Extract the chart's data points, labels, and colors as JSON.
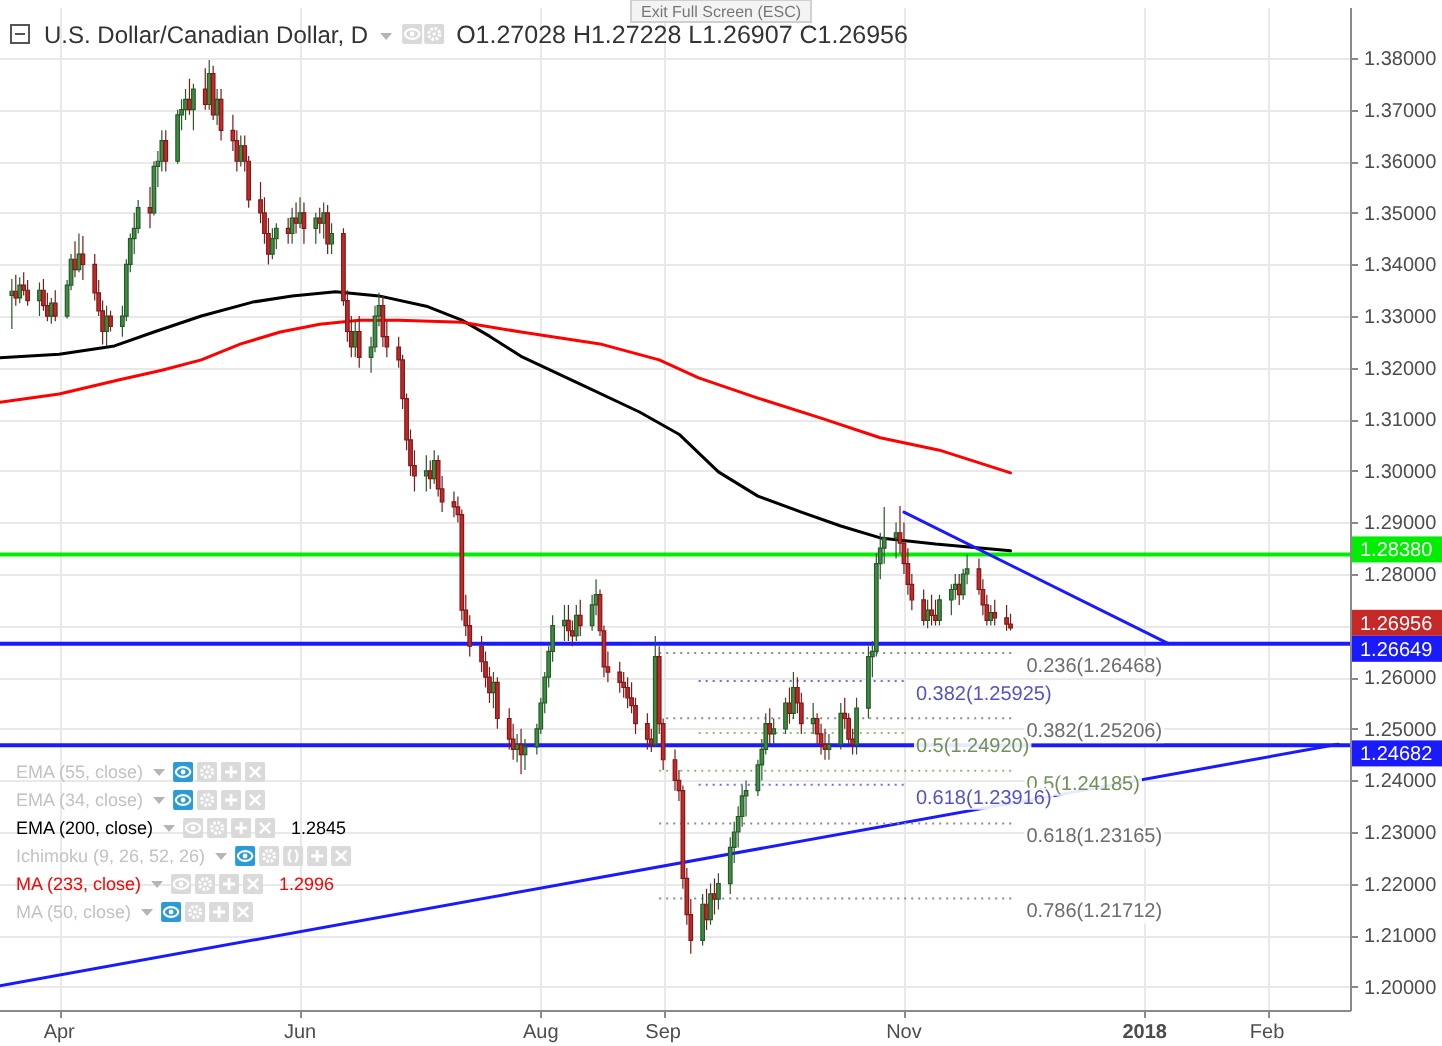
{
  "chart_data": {
    "type": "candlestick",
    "title": "U.S. Dollar/Canadian Dollar, D",
    "subtitle": "O1.27028 H1.27228 L1.26907 C1.26956",
    "xlim": [
      "2017-03-17",
      "2018-02-22"
    ],
    "xticks": [
      {
        "value": "2017-04-01",
        "label": "Apr"
      },
      {
        "value": "2017-06-01",
        "label": "Jun"
      },
      {
        "value": "2017-08-01",
        "label": "Aug"
      },
      {
        "value": "2017-09-01",
        "label": "Sep"
      },
      {
        "value": "2017-11-01",
        "label": "Nov"
      },
      {
        "value": "2018-01-01",
        "label": "2018"
      },
      {
        "value": "2018-02-01",
        "label": "Feb"
      }
    ],
    "ylim": [
      1.1955,
      1.3897
    ],
    "yticks": [
      {
        "value": 1.2,
        "label": "1.20000"
      },
      {
        "value": 1.21,
        "label": "1.21000"
      },
      {
        "value": 1.22,
        "label": "1.22000"
      },
      {
        "value": 1.23,
        "label": "1.23000"
      },
      {
        "value": 1.24,
        "label": "1.24000"
      },
      {
        "value": 1.25,
        "label": "1.25000"
      },
      {
        "value": 1.26,
        "label": "1.26000"
      },
      {
        "value": 1.27,
        "label": null
      },
      {
        "value": 1.28,
        "label": "1.28000"
      },
      {
        "value": 1.29,
        "label": "1.29000"
      },
      {
        "value": 1.3,
        "label": "1.30000"
      },
      {
        "value": 1.31,
        "label": "1.31000"
      },
      {
        "value": 1.32,
        "label": "1.32000"
      },
      {
        "value": 1.33,
        "label": "1.33000"
      },
      {
        "value": 1.34,
        "label": "1.34000"
      },
      {
        "value": 1.35,
        "label": "1.35000"
      },
      {
        "value": 1.36,
        "label": "1.36000"
      },
      {
        "value": 1.37,
        "label": "1.37000"
      },
      {
        "value": 1.38,
        "label": "1.38000"
      }
    ],
    "grid": true,
    "legend": "bottom left",
    "x": [
      "2017-03-20",
      "2017-03-21",
      "2017-03-22",
      "2017-03-23",
      "2017-03-24",
      "2017-03-27",
      "2017-03-28",
      "2017-03-29",
      "2017-03-30",
      "2017-03-31",
      "2017-04-03",
      "2017-04-04",
      "2017-04-05",
      "2017-04-06",
      "2017-04-07",
      "2017-04-10",
      "2017-04-11",
      "2017-04-12",
      "2017-04-13",
      "2017-04-14",
      "2017-04-17",
      "2017-04-18",
      "2017-04-19",
      "2017-04-20",
      "2017-04-21",
      "2017-04-24",
      "2017-04-25",
      "2017-04-26",
      "2017-04-27",
      "2017-04-28",
      "2017-05-01",
      "2017-05-02",
      "2017-05-03",
      "2017-05-04",
      "2017-05-05",
      "2017-05-08",
      "2017-05-09",
      "2017-05-10",
      "2017-05-11",
      "2017-05-12",
      "2017-05-15",
      "2017-05-16",
      "2017-05-17",
      "2017-05-18",
      "2017-05-19",
      "2017-05-22",
      "2017-05-23",
      "2017-05-24",
      "2017-05-25",
      "2017-05-26",
      "2017-05-29",
      "2017-05-30",
      "2017-05-31",
      "2017-06-01",
      "2017-06-02",
      "2017-06-05",
      "2017-06-06",
      "2017-06-07",
      "2017-06-08",
      "2017-06-09",
      "2017-06-12",
      "2017-06-13",
      "2017-06-14",
      "2017-06-15",
      "2017-06-16",
      "2017-06-19",
      "2017-06-20",
      "2017-06-21",
      "2017-06-22",
      "2017-06-23",
      "2017-06-26",
      "2017-06-27",
      "2017-06-28",
      "2017-06-29",
      "2017-06-30",
      "2017-07-03",
      "2017-07-04",
      "2017-07-05",
      "2017-07-06",
      "2017-07-07",
      "2017-07-10",
      "2017-07-11",
      "2017-07-12",
      "2017-07-13",
      "2017-07-14",
      "2017-07-17",
      "2017-07-18",
      "2017-07-19",
      "2017-07-20",
      "2017-07-21",
      "2017-07-24",
      "2017-07-25",
      "2017-07-26",
      "2017-07-27",
      "2017-07-28",
      "2017-07-31",
      "2017-08-01",
      "2017-08-02",
      "2017-08-03",
      "2017-08-04",
      "2017-08-07",
      "2017-08-08",
      "2017-08-09",
      "2017-08-10",
      "2017-08-11",
      "2017-08-14",
      "2017-08-15",
      "2017-08-16",
      "2017-08-17",
      "2017-08-18",
      "2017-08-21",
      "2017-08-22",
      "2017-08-23",
      "2017-08-24",
      "2017-08-25",
      "2017-08-28",
      "2017-08-29",
      "2017-08-30",
      "2017-08-31",
      "2017-09-01",
      "2017-09-04",
      "2017-09-05",
      "2017-09-06",
      "2017-09-07",
      "2017-09-08",
      "2017-09-11",
      "2017-09-12",
      "2017-09-13",
      "2017-09-14",
      "2017-09-15",
      "2017-09-18",
      "2017-09-19",
      "2017-09-20",
      "2017-09-21",
      "2017-09-22",
      "2017-09-25",
      "2017-09-26",
      "2017-09-27",
      "2017-09-28",
      "2017-09-29",
      "2017-10-02",
      "2017-10-03",
      "2017-10-04",
      "2017-10-05",
      "2017-10-06",
      "2017-10-09",
      "2017-10-10",
      "2017-10-11",
      "2017-10-12",
      "2017-10-13",
      "2017-10-16",
      "2017-10-17",
      "2017-10-18",
      "2017-10-19",
      "2017-10-20",
      "2017-10-23",
      "2017-10-24",
      "2017-10-25",
      "2017-10-26",
      "2017-10-27",
      "2017-10-30",
      "2017-10-31",
      "2017-11-01",
      "2017-11-02",
      "2017-11-03",
      "2017-11-06",
      "2017-11-07",
      "2017-11-08",
      "2017-11-09",
      "2017-11-10",
      "2017-11-13",
      "2017-11-14",
      "2017-11-15",
      "2017-11-16",
      "2017-11-17",
      "2017-11-20",
      "2017-11-21",
      "2017-11-22",
      "2017-11-23",
      "2017-11-24",
      "2017-11-27",
      "2017-11-28"
    ],
    "ohlc": [
      [
        1.334,
        1.3372,
        1.3275,
        1.3348
      ],
      [
        1.3348,
        1.338,
        1.332,
        1.3335
      ],
      [
        1.3335,
        1.3375,
        1.3325,
        1.336
      ],
      [
        1.336,
        1.3385,
        1.334,
        1.335
      ],
      [
        1.335,
        1.337,
        1.332,
        1.333
      ],
      [
        1.333,
        1.3365,
        1.33,
        1.335
      ],
      [
        1.335,
        1.3372,
        1.331,
        1.332
      ],
      [
        1.332,
        1.3345,
        1.329,
        1.33
      ],
      [
        1.33,
        1.3335,
        1.3285,
        1.3325
      ],
      [
        1.3325,
        1.335,
        1.329,
        1.33
      ],
      [
        1.33,
        1.337,
        1.3295,
        1.336
      ],
      [
        1.336,
        1.342,
        1.335,
        1.341
      ],
      [
        1.341,
        1.3445,
        1.3375,
        1.339
      ],
      [
        1.339,
        1.346,
        1.3385,
        1.342
      ],
      [
        1.342,
        1.3455,
        1.337,
        1.34
      ],
      [
        1.34,
        1.342,
        1.333,
        1.3345
      ],
      [
        1.3345,
        1.337,
        1.33,
        1.331
      ],
      [
        1.331,
        1.333,
        1.3245,
        1.327
      ],
      [
        1.327,
        1.332,
        1.3242,
        1.33
      ],
      [
        1.33,
        1.331,
        1.327,
        1.328
      ],
      [
        1.328,
        1.332,
        1.326,
        1.33
      ],
      [
        1.33,
        1.341,
        1.329,
        1.34
      ],
      [
        1.34,
        1.346,
        1.3385,
        1.345
      ],
      [
        1.345,
        1.35,
        1.342,
        1.347
      ],
      [
        1.347,
        1.3525,
        1.346,
        1.351
      ],
      [
        1.351,
        1.355,
        1.347,
        1.35
      ],
      [
        1.35,
        1.36,
        1.3495,
        1.359
      ],
      [
        1.359,
        1.362,
        1.355,
        1.36
      ],
      [
        1.36,
        1.366,
        1.358,
        1.364
      ],
      [
        1.364,
        1.366,
        1.358,
        1.36
      ],
      [
        1.36,
        1.37,
        1.3595,
        1.369
      ],
      [
        1.369,
        1.372,
        1.366,
        1.37
      ],
      [
        1.37,
        1.374,
        1.368,
        1.372
      ],
      [
        1.372,
        1.376,
        1.369,
        1.37
      ],
      [
        1.37,
        1.375,
        1.366,
        1.374
      ],
      [
        1.374,
        1.378,
        1.37,
        1.371
      ],
      [
        1.371,
        1.3796,
        1.37,
        1.377
      ],
      [
        1.377,
        1.3785,
        1.368,
        1.369
      ],
      [
        1.369,
        1.374,
        1.367,
        1.372
      ],
      [
        1.372,
        1.374,
        1.364,
        1.366
      ],
      [
        1.366,
        1.369,
        1.362,
        1.364
      ],
      [
        1.364,
        1.366,
        1.358,
        1.36
      ],
      [
        1.36,
        1.365,
        1.359,
        1.363
      ],
      [
        1.363,
        1.365,
        1.358,
        1.36
      ],
      [
        1.36,
        1.361,
        1.351,
        1.3525
      ],
      [
        1.3525,
        1.356,
        1.348,
        1.35
      ],
      [
        1.35,
        1.353,
        1.344,
        1.346
      ],
      [
        1.346,
        1.349,
        1.34,
        1.342
      ],
      [
        1.342,
        1.347,
        1.341,
        1.345
      ],
      [
        1.345,
        1.348,
        1.343,
        1.347
      ],
      [
        1.347,
        1.349,
        1.344,
        1.346
      ],
      [
        1.346,
        1.351,
        1.344,
        1.349
      ],
      [
        1.349,
        1.352,
        1.346,
        1.348
      ],
      [
        1.348,
        1.353,
        1.347,
        1.35
      ],
      [
        1.35,
        1.352,
        1.344,
        1.347
      ],
      [
        1.347,
        1.35,
        1.344,
        1.349
      ],
      [
        1.349,
        1.351,
        1.346,
        1.348
      ],
      [
        1.348,
        1.352,
        1.345,
        1.35
      ],
      [
        1.35,
        1.3515,
        1.342,
        1.344
      ],
      [
        1.344,
        1.348,
        1.342,
        1.346
      ],
      [
        1.346,
        1.347,
        1.332,
        1.333
      ],
      [
        1.333,
        1.335,
        1.325,
        1.327
      ],
      [
        1.327,
        1.33,
        1.322,
        1.324
      ],
      [
        1.324,
        1.329,
        1.322,
        1.327
      ],
      [
        1.327,
        1.33,
        1.32,
        1.322
      ],
      [
        1.322,
        1.326,
        1.319,
        1.324
      ],
      [
        1.324,
        1.332,
        1.323,
        1.33
      ],
      [
        1.33,
        1.3345,
        1.328,
        1.332
      ],
      [
        1.332,
        1.334,
        1.324,
        1.326
      ],
      [
        1.326,
        1.329,
        1.322,
        1.324
      ],
      [
        1.324,
        1.326,
        1.32,
        1.3215
      ],
      [
        1.3215,
        1.3225,
        1.312,
        1.314
      ],
      [
        1.314,
        1.315,
        1.304,
        1.306
      ],
      [
        1.306,
        1.308,
        1.299,
        1.301
      ],
      [
        1.301,
        1.304,
        1.296,
        1.299
      ],
      [
        1.299,
        1.303,
        1.296,
        1.3
      ],
      [
        1.3,
        1.302,
        1.2965,
        1.2985
      ],
      [
        1.2985,
        1.304,
        1.2975,
        1.302
      ],
      [
        1.302,
        1.303,
        1.295,
        1.2965
      ],
      [
        1.2965,
        1.299,
        1.292,
        1.294
      ],
      [
        1.294,
        1.296,
        1.291,
        1.293
      ],
      [
        1.293,
        1.295,
        1.29,
        1.2915
      ],
      [
        1.2915,
        1.2925,
        1.271,
        1.273
      ],
      [
        1.273,
        1.276,
        1.268,
        1.27
      ],
      [
        1.27,
        1.272,
        1.264,
        1.266
      ],
      [
        1.266,
        1.268,
        1.261,
        1.263
      ],
      [
        1.263,
        1.265,
        1.258,
        1.26
      ],
      [
        1.26,
        1.262,
        1.255,
        1.257
      ],
      [
        1.257,
        1.261,
        1.254,
        1.259
      ],
      [
        1.259,
        1.26,
        1.25,
        1.252
      ],
      [
        1.252,
        1.254,
        1.246,
        1.248
      ],
      [
        1.248,
        1.251,
        1.244,
        1.246
      ],
      [
        1.246,
        1.249,
        1.2435,
        1.247
      ],
      [
        1.247,
        1.25,
        1.2412,
        1.245
      ],
      [
        1.245,
        1.248,
        1.242,
        1.2465
      ],
      [
        1.2465,
        1.251,
        1.245,
        1.25
      ],
      [
        1.25,
        1.256,
        1.249,
        1.255
      ],
      [
        1.255,
        1.261,
        1.253,
        1.26
      ],
      [
        1.26,
        1.266,
        1.258,
        1.265
      ],
      [
        1.265,
        1.272,
        1.263,
        1.27
      ],
      [
        1.27,
        1.274,
        1.267,
        1.271
      ],
      [
        1.271,
        1.274,
        1.267,
        1.269
      ],
      [
        1.269,
        1.271,
        1.266,
        1.268
      ],
      [
        1.268,
        1.274,
        1.267,
        1.272
      ],
      [
        1.272,
        1.275,
        1.268,
        1.27
      ],
      [
        1.27,
        1.276,
        1.269,
        1.274
      ],
      [
        1.274,
        1.279,
        1.272,
        1.276
      ],
      [
        1.276,
        1.277,
        1.268,
        1.269
      ],
      [
        1.269,
        1.27,
        1.26,
        1.262
      ],
      [
        1.262,
        1.265,
        1.259,
        1.261
      ],
      [
        1.261,
        1.263,
        1.257,
        1.259
      ],
      [
        1.259,
        1.261,
        1.256,
        1.258
      ],
      [
        1.258,
        1.26,
        1.254,
        1.256
      ],
      [
        1.256,
        1.259,
        1.253,
        1.2545
      ],
      [
        1.2545,
        1.256,
        1.249,
        1.251
      ],
      [
        1.251,
        1.253,
        1.246,
        1.248
      ],
      [
        1.248,
        1.25,
        1.2455,
        1.247
      ],
      [
        1.247,
        1.268,
        1.2465,
        1.264
      ],
      [
        1.264,
        1.266,
        1.249,
        1.251
      ],
      [
        1.251,
        1.252,
        1.242,
        1.244
      ],
      [
        1.244,
        1.246,
        1.238,
        1.24
      ],
      [
        1.24,
        1.242,
        1.236,
        1.238
      ],
      [
        1.238,
        1.239,
        1.219,
        1.221
      ],
      [
        1.221,
        1.223,
        1.212,
        1.214
      ],
      [
        1.214,
        1.217,
        1.2064,
        1.209
      ],
      [
        1.209,
        1.218,
        1.208,
        1.216
      ],
      [
        1.216,
        1.219,
        1.211,
        1.213
      ],
      [
        1.213,
        1.22,
        1.212,
        1.218
      ],
      [
        1.218,
        1.221,
        1.214,
        1.217
      ],
      [
        1.217,
        1.222,
        1.215,
        1.22
      ],
      [
        1.22,
        1.229,
        1.218,
        1.227
      ],
      [
        1.227,
        1.232,
        1.224,
        1.23
      ],
      [
        1.23,
        1.235,
        1.227,
        1.233
      ],
      [
        1.233,
        1.239,
        1.231,
        1.237
      ],
      [
        1.237,
        1.24,
        1.233,
        1.238
      ],
      [
        1.238,
        1.244,
        1.237,
        1.243
      ],
      [
        1.243,
        1.248,
        1.24,
        1.246
      ],
      [
        1.246,
        1.253,
        1.245,
        1.251
      ],
      [
        1.251,
        1.254,
        1.247,
        1.249
      ],
      [
        1.249,
        1.252,
        1.247,
        1.25
      ],
      [
        1.25,
        1.256,
        1.249,
        1.255
      ],
      [
        1.255,
        1.258,
        1.251,
        1.253
      ],
      [
        1.253,
        1.261,
        1.252,
        1.258
      ],
      [
        1.258,
        1.26,
        1.253,
        1.255
      ],
      [
        1.255,
        1.257,
        1.249,
        1.251
      ],
      [
        1.251,
        1.255,
        1.249,
        1.252
      ],
      [
        1.252,
        1.253,
        1.247,
        1.249
      ],
      [
        1.249,
        1.251,
        1.245,
        1.247
      ],
      [
        1.247,
        1.25,
        1.244,
        1.246
      ],
      [
        1.246,
        1.249,
        1.244,
        1.247
      ],
      [
        1.247,
        1.255,
        1.246,
        1.253
      ],
      [
        1.253,
        1.256,
        1.25,
        1.252
      ],
      [
        1.252,
        1.253,
        1.247,
        1.248
      ],
      [
        1.248,
        1.25,
        1.245,
        1.247
      ],
      [
        1.247,
        1.256,
        1.245,
        1.254
      ],
      [
        1.254,
        1.266,
        1.252,
        1.264
      ],
      [
        1.264,
        1.267,
        1.26,
        1.265
      ],
      [
        1.265,
        1.284,
        1.264,
        1.282
      ],
      [
        1.282,
        1.288,
        1.279,
        1.285
      ],
      [
        1.285,
        1.293,
        1.282,
        1.287
      ],
      [
        1.287,
        1.29,
        1.283,
        1.288
      ],
      [
        1.288,
        1.2932,
        1.284,
        1.286
      ],
      [
        1.286,
        1.29,
        1.28,
        1.282
      ],
      [
        1.282,
        1.285,
        1.276,
        1.278
      ],
      [
        1.278,
        1.28,
        1.273,
        1.275
      ],
      [
        1.275,
        1.277,
        1.27,
        1.271
      ],
      [
        1.271,
        1.275,
        1.2695,
        1.273
      ],
      [
        1.273,
        1.276,
        1.27,
        1.272
      ],
      [
        1.272,
        1.275,
        1.27,
        1.271
      ],
      [
        1.271,
        1.276,
        1.27,
        1.275
      ],
      [
        1.275,
        1.278,
        1.272,
        1.277
      ],
      [
        1.277,
        1.28,
        1.275,
        1.278
      ],
      [
        1.278,
        1.28,
        1.274,
        1.276
      ],
      [
        1.276,
        1.281,
        1.275,
        1.28
      ],
      [
        1.28,
        1.2838,
        1.278,
        1.281
      ],
      [
        1.281,
        1.283,
        1.276,
        1.277
      ],
      [
        1.277,
        1.279,
        1.272,
        1.274
      ],
      [
        1.274,
        1.276,
        1.27,
        1.271
      ],
      [
        1.271,
        1.274,
        1.27,
        1.2725
      ],
      [
        1.2725,
        1.275,
        1.27,
        1.2715
      ],
      [
        1.2715,
        1.274,
        1.269,
        1.2703
      ],
      [
        1.27028,
        1.27228,
        1.26907,
        1.26956
      ]
    ],
    "colors": [
      "#3e8e41",
      "#c62828",
      "#3e8e41",
      "#c62828",
      "#c62828",
      "#3e8e41",
      "#c62828",
      "#c62828",
      "#3e8e41",
      "#c62828",
      "#3e8e41",
      "#3e8e41",
      "#c62828",
      "#3e8e41",
      "#c62828",
      "#c62828",
      "#c62828",
      "#c62828",
      "#3e8e41",
      "#c62828",
      "#3e8e41",
      "#3e8e41",
      "#3e8e41",
      "#3e8e41",
      "#3e8e41",
      "#c62828",
      "#3e8e41",
      "#3e8e41",
      "#3e8e41",
      "#c62828",
      "#3e8e41",
      "#3e8e41",
      "#3e8e41",
      "#c62828",
      "#3e8e41",
      "#c62828",
      "#3e8e41",
      "#c62828",
      "#3e8e41",
      "#c62828",
      "#c62828",
      "#c62828",
      "#3e8e41",
      "#c62828",
      "#c62828",
      "#c62828",
      "#c62828",
      "#c62828",
      "#3e8e41",
      "#3e8e41",
      "#c62828",
      "#3e8e41",
      "#c62828",
      "#3e8e41",
      "#c62828",
      "#3e8e41",
      "#c62828",
      "#3e8e41",
      "#c62828",
      "#3e8e41",
      "#c62828",
      "#c62828",
      "#c62828",
      "#3e8e41",
      "#c62828",
      "#3e8e41",
      "#3e8e41",
      "#3e8e41",
      "#c62828",
      "#c62828",
      "#c62828",
      "#c62828",
      "#c62828",
      "#c62828",
      "#c62828",
      "#3e8e41",
      "#c62828",
      "#3e8e41",
      "#c62828",
      "#c62828",
      "#c62828",
      "#c62828",
      "#c62828",
      "#c62828",
      "#c62828",
      "#c62828",
      "#c62828",
      "#c62828",
      "#3e8e41",
      "#c62828",
      "#c62828",
      "#c62828",
      "#3e8e41",
      "#c62828",
      "#3e8e41",
      "#3e8e41",
      "#3e8e41",
      "#3e8e41",
      "#3e8e41",
      "#3e8e41",
      "#3e8e41",
      "#c62828",
      "#c62828",
      "#3e8e41",
      "#c62828",
      "#3e8e41",
      "#3e8e41",
      "#c62828",
      "#c62828",
      "#c62828",
      "#c62828",
      "#c62828",
      "#c62828",
      "#c62828",
      "#c62828",
      "#c62828",
      "#c62828",
      "#3e8e41",
      "#c62828",
      "#c62828",
      "#c62828",
      "#c62828",
      "#c62828",
      "#c62828",
      "#c62828",
      "#3e8e41",
      "#c62828",
      "#3e8e41",
      "#c62828",
      "#3e8e41",
      "#3e8e41",
      "#3e8e41",
      "#3e8e41",
      "#3e8e41",
      "#3e8e41",
      "#3e8e41",
      "#3e8e41",
      "#3e8e41",
      "#c62828",
      "#3e8e41",
      "#3e8e41",
      "#c62828",
      "#3e8e41",
      "#c62828",
      "#c62828",
      "#3e8e41",
      "#c62828",
      "#c62828",
      "#c62828",
      "#3e8e41",
      "#3e8e41",
      "#c62828",
      "#c62828",
      "#c62828",
      "#3e8e41",
      "#3e8e41",
      "#3e8e41",
      "#3e8e41",
      "#3e8e41",
      "#3e8e41",
      "#3e8e41",
      "#c62828",
      "#c62828",
      "#c62828",
      "#c62828",
      "#c62828",
      "#3e8e41",
      "#c62828",
      "#c62828",
      "#3e8e41",
      "#3e8e41",
      "#3e8e41",
      "#c62828",
      "#3e8e41",
      "#3e8e41",
      "#c62828",
      "#c62828",
      "#c62828",
      "#3e8e41",
      "#c62828",
      "#c62828",
      "#c62828"
    ],
    "series": [
      {
        "type": "line",
        "name": "EMA (200, close)",
        "color": "#000000",
        "x": [
          "2017-03-17",
          "2017-04-01",
          "2017-04-15",
          "2017-04-25",
          "2017-05-07",
          "2017-05-20",
          "2017-05-30",
          "2017-06-10",
          "2017-06-21",
          "2017-07-03",
          "2017-07-12",
          "2017-07-19",
          "2017-07-27",
          "2017-08-11",
          "2017-08-26",
          "2017-09-05",
          "2017-09-15",
          "2017-09-25",
          "2017-10-06",
          "2017-10-16",
          "2017-10-26",
          "2017-11-09",
          "2017-11-28"
        ],
        "values": [
          1.3219,
          1.3226,
          1.3242,
          1.3269,
          1.33,
          1.3327,
          1.3339,
          1.3347,
          1.3339,
          1.3319,
          1.3292,
          1.3261,
          1.3222,
          1.3168,
          1.3114,
          1.3071,
          1.2998,
          1.2951,
          1.292,
          1.2893,
          1.287,
          1.2858,
          1.2845
        ]
      },
      {
        "type": "line",
        "name": "MA (233, close)",
        "color": "#ff0000",
        "x": [
          "2017-03-17",
          "2017-04-01",
          "2017-04-16",
          "2017-04-27",
          "2017-05-07",
          "2017-05-17",
          "2017-05-27",
          "2017-06-06",
          "2017-06-16",
          "2017-06-26",
          "2017-07-12",
          "2017-07-27",
          "2017-08-16",
          "2017-08-31",
          "2017-09-10",
          "2017-09-25",
          "2017-10-11",
          "2017-10-26",
          "2017-11-10",
          "2017-11-28"
        ],
        "values": [
          1.3133,
          1.3149,
          1.3176,
          1.3195,
          1.3215,
          1.3246,
          1.3269,
          1.3284,
          1.3292,
          1.3292,
          1.3288,
          1.3269,
          1.3246,
          1.3215,
          1.318,
          1.3141,
          1.3102,
          1.3064,
          1.304,
          1.2996
        ]
      },
      {
        "type": "line",
        "color": "#1a1aff",
        "x": [
          "2017-03-17",
          "2018-02-19"
        ],
        "values": [
          1.2002,
          1.247
        ]
      },
      {
        "type": "line",
        "color": "#1a1aff",
        "x": [
          "2017-11-01",
          "2018-01-07"
        ],
        "values": [
          1.292,
          1.2665
        ]
      },
      {
        "type": "line",
        "color": "#8c8c8c",
        "line_style": "dotted",
        "x": [
          "2017-08-31",
          "2017-11-29"
        ],
        "values": [
          1.26468,
          1.26468
        ]
      },
      {
        "type": "line",
        "color": "#8c8c8c",
        "line_style": "dotted",
        "x": [
          "2017-08-31",
          "2017-11-29"
        ],
        "values": [
          1.25206,
          1.25206
        ]
      },
      {
        "type": "line",
        "color": "#8fbc6f",
        "line_style": "dotted",
        "x": [
          "2017-08-31",
          "2017-11-29"
        ],
        "values": [
          1.24185,
          1.24185
        ]
      },
      {
        "type": "line",
        "color": "#8c8c8c",
        "line_style": "dotted",
        "x": [
          "2017-08-31",
          "2017-11-29"
        ],
        "values": [
          1.23165,
          1.23165
        ]
      },
      {
        "type": "line",
        "color": "#8c8c8c",
        "line_style": "dotted",
        "x": [
          "2017-08-31",
          "2017-11-29"
        ],
        "values": [
          1.21712,
          1.21712
        ]
      },
      {
        "type": "line",
        "color": "#6a6aff",
        "line_style": "dotted",
        "x": [
          "2017-09-10",
          "2017-11-01"
        ],
        "values": [
          1.25925,
          1.25925
        ]
      },
      {
        "type": "line",
        "color": "#8fbc6f",
        "line_style": "dotted",
        "x": [
          "2017-09-10",
          "2017-11-01"
        ],
        "values": [
          1.2492,
          1.2492
        ]
      },
      {
        "type": "line",
        "color": "#6a6aff",
        "line_style": "dotted",
        "x": [
          "2017-09-10",
          "2017-11-01"
        ],
        "values": [
          1.23916,
          1.23916
        ]
      }
    ],
    "ref_lines": [
      {
        "axis": "y",
        "value": 1.2838,
        "label": "1.28380",
        "color": "#00ee00"
      },
      {
        "axis": "y",
        "value": 1.26649,
        "label": "1.26649",
        "color": "#1a1aff"
      },
      {
        "axis": "y",
        "value": 1.24682,
        "label": "1.24682",
        "color": "#1a1aff"
      }
    ],
    "annotations": [
      "Exit Full Screen (ESC)",
      "EMA (55, close)",
      "EMA (34, close)",
      "Ichimoku (9, 26, 52, 26)",
      "MA (50, close)",
      "1.2845",
      "1.2996",
      "1.26956",
      {
        "text": "0.236(1.26468)",
        "x": "2017-11-29",
        "y": 1.26468
      },
      {
        "text": "0.382(1.25925)",
        "x": "2017-11-01",
        "y": 1.25925
      },
      {
        "text": "0.382(1.25206)",
        "x": "2017-11-29",
        "y": 1.25206
      },
      {
        "text": "0.5(1.24920)",
        "x": "2017-11-01",
        "y": 1.2492
      },
      {
        "text": "0.5(1.24185)",
        "x": "2017-11-29",
        "y": 1.24185
      },
      {
        "text": "0.618(1.23916)",
        "x": "2017-11-01",
        "y": 1.23916
      },
      {
        "text": "0.618(1.23165)",
        "x": "2017-11-29",
        "y": 1.23165
      },
      {
        "text": "0.786(1.21712)",
        "x": "2017-11-29",
        "y": 1.21712
      }
    ]
  }
}
